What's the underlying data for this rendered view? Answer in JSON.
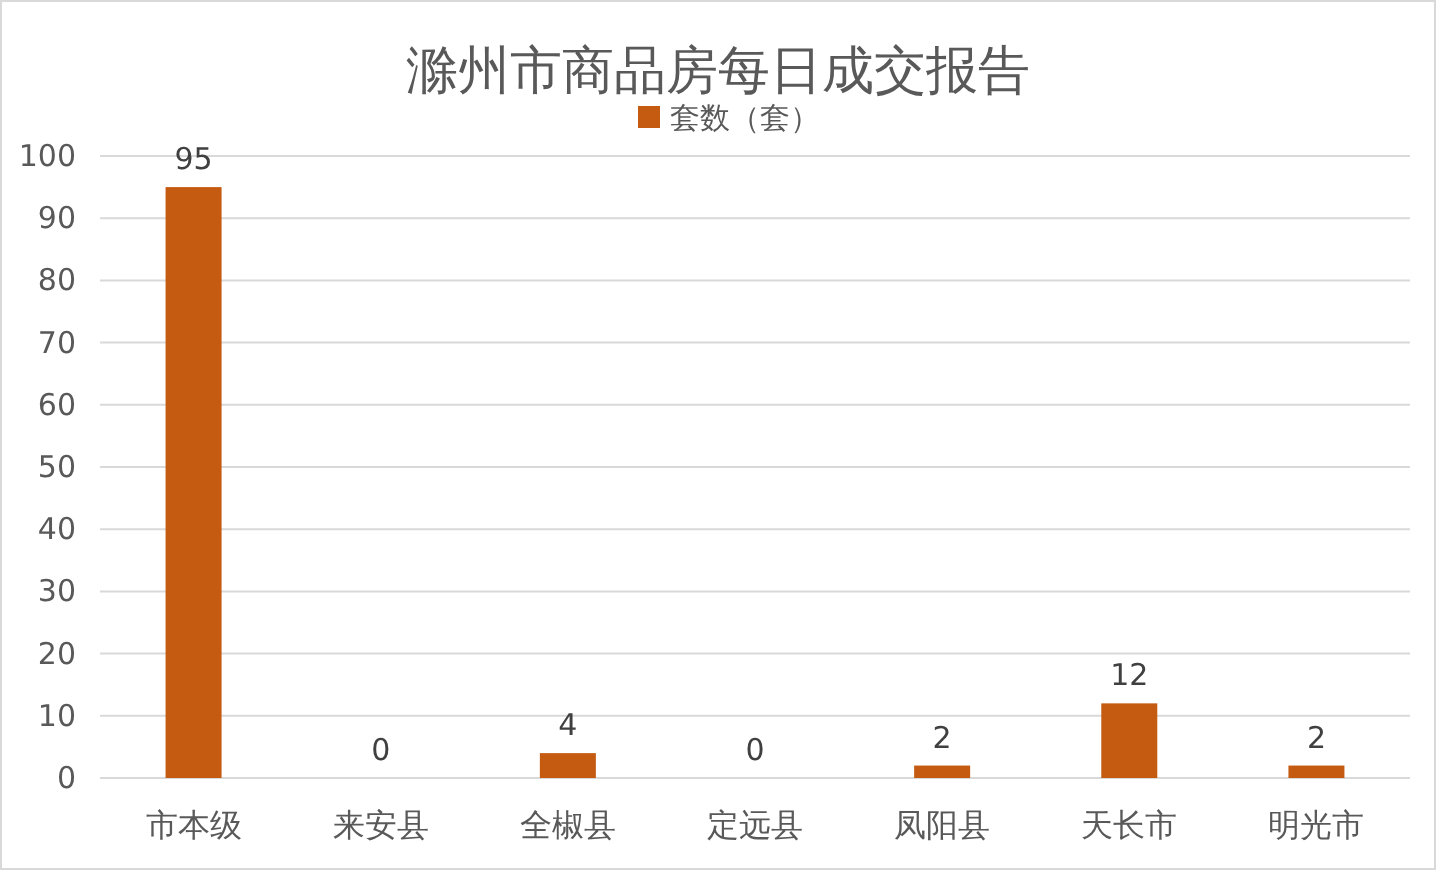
{
  "chart_data": {
    "type": "bar",
    "title": "滁州市商品房每日成交报告",
    "categories": [
      "市本级",
      "来安县",
      "全椒县",
      "定远县",
      "凤阳县",
      "天长市",
      "明光市"
    ],
    "series": [
      {
        "name": "套数（套）",
        "color": "#c55a11",
        "values": [
          95,
          0,
          4,
          0,
          2,
          12,
          2
        ]
      }
    ],
    "ylim": [
      0,
      100
    ],
    "yticks": [
      0,
      10,
      20,
      30,
      40,
      50,
      60,
      70,
      80,
      90,
      100
    ],
    "grid": "y",
    "legend": "top",
    "data_labels": true
  }
}
